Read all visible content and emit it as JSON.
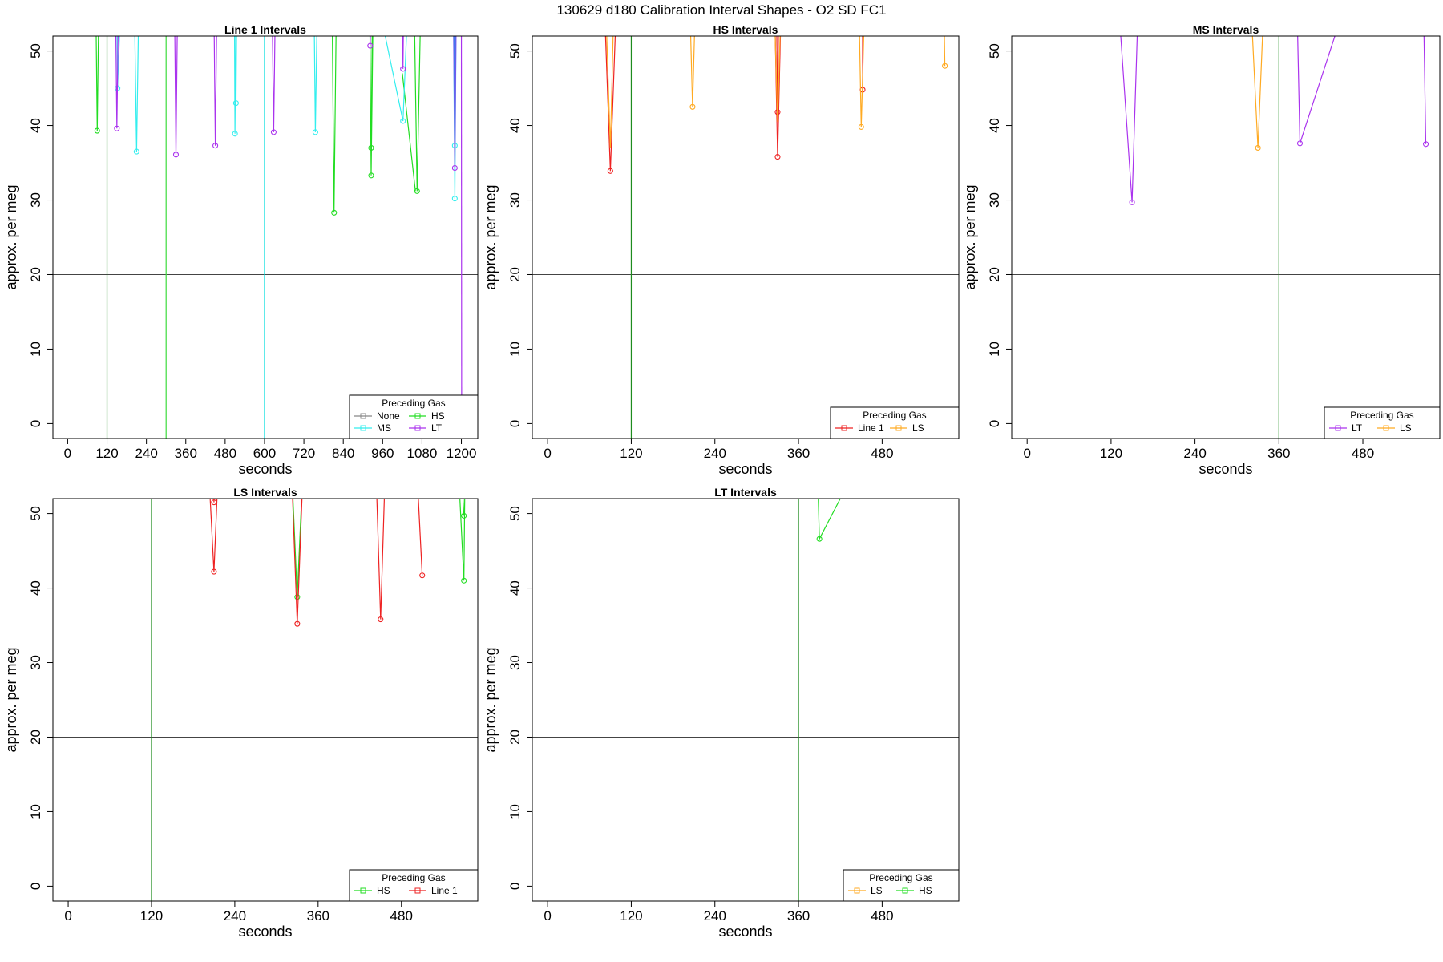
{
  "figure": {
    "title": "130629   d180   Calibration Interval Shapes - O2 SD FC1"
  },
  "chart_data": [
    {
      "type": "line",
      "title": "Line 1 Intervals",
      "xlabel": "seconds",
      "ylabel": "approx. per meg",
      "xlim": [
        -45,
        1250
      ],
      "ylim": [
        -2,
        52
      ],
      "xticks": [
        0,
        120,
        240,
        360,
        480,
        600,
        720,
        840,
        960,
        1080,
        1200
      ],
      "yticks": [
        0,
        10,
        20,
        30,
        40,
        50
      ],
      "hline": 20,
      "vlines": [
        {
          "x": 120,
          "color": "#1e8c1e"
        },
        {
          "x": 300,
          "color": "#3ddc3d"
        },
        {
          "x": 600,
          "color": "#00dddd"
        }
      ],
      "legend": {
        "title": "Preceding Gas",
        "position": "bottom-right",
        "columns": 2,
        "entries": [
          "None",
          "HS",
          "MS",
          "LT"
        ]
      },
      "series": [
        {
          "name": "HS",
          "color": "#22dd22",
          "segments": [
            [
              [
                85,
                60
              ],
              [
                90,
                39.3
              ],
              [
                96,
                60
              ]
            ],
            [
              [
                118,
                60
              ],
              [
                120,
                55
              ],
              [
                122,
                60
              ]
            ],
            [
              [
                805,
                60
              ],
              [
                812,
                28.3
              ],
              [
                820,
                60
              ]
            ],
            [
              [
                920,
                60
              ],
              [
                925,
                33.3
              ],
              [
                932,
                60
              ]
            ],
            [
              [
                925,
                37
              ],
              [
                930,
                60
              ]
            ],
            [
              [
                1055,
                60
              ],
              [
                1065,
                31.2
              ],
              [
                1078,
                60
              ]
            ],
            [
              [
                1020,
                47
              ],
              [
                1060,
                31.2
              ]
            ]
          ],
          "points": [
            [
              90,
              39.3
            ],
            [
              812,
              28.3
            ],
            [
              925,
              33.3
            ],
            [
              925,
              37
            ],
            [
              1065,
              31.2
            ]
          ]
        },
        {
          "name": "MS",
          "color": "#33eeee",
          "segments": [
            [
              [
                150,
                60
              ],
              [
                152,
                45
              ],
              [
                165,
                60
              ]
            ],
            [
              [
                202,
                60
              ],
              [
                210,
                36.5
              ],
              [
                218,
                60
              ]
            ],
            [
              [
                508,
                60
              ],
              [
                510,
                38.9
              ],
              [
                514,
                60
              ]
            ],
            [
              [
                512,
                60
              ],
              [
                513,
                43
              ],
              [
                516,
                60
              ]
            ],
            [
              [
                762,
                60
              ],
              [
                755,
                39.1
              ],
              [
                750,
                60
              ]
            ],
            [
              [
                930,
                60
              ],
              [
                1022,
                40.6
              ],
              [
                1040,
                60
              ]
            ],
            [
              [
                1175,
                60
              ],
              [
                1180,
                30.2
              ],
              [
                1185,
                60
              ]
            ],
            [
              [
                1179,
                60
              ],
              [
                1180,
                37.3
              ],
              [
                1182,
                60
              ]
            ]
          ],
          "points": [
            [
              152,
              45
            ],
            [
              210,
              36.5
            ],
            [
              510,
              38.9
            ],
            [
              513,
              43
            ],
            [
              755,
              39.1
            ],
            [
              1022,
              40.6
            ],
            [
              1180,
              30.2
            ],
            [
              1180,
              37.3
            ]
          ]
        },
        {
          "name": "LT",
          "color": "#aa33ee",
          "segments": [
            [
              [
                145,
                60
              ],
              [
                150,
                39.6
              ],
              [
                156,
                60
              ]
            ],
            [
              [
                325,
                60
              ],
              [
                330,
                36.1
              ],
              [
                336,
                60
              ]
            ],
            [
              [
                445,
                60
              ],
              [
                450,
                37.3
              ],
              [
                456,
                60
              ]
            ],
            [
              [
                622,
                60
              ],
              [
                628,
                39.1
              ],
              [
                634,
                60
              ]
            ],
            [
              [
                918,
                60
              ],
              [
                922,
                50.7
              ],
              [
                926,
                60
              ]
            ],
            [
              [
                1020,
                60
              ],
              [
                1022,
                47.6
              ],
              [
                1025,
                60
              ]
            ],
            [
              [
                1175,
                60
              ],
              [
                1180,
                34.3
              ],
              [
                1185,
                60
              ]
            ],
            [
              [
                1200,
                60
              ],
              [
                1201,
                -2
              ]
            ]
          ],
          "points": [
            [
              150,
              39.6
            ],
            [
              330,
              36.1
            ],
            [
              450,
              37.3
            ],
            [
              628,
              39.1
            ],
            [
              922,
              50.7
            ],
            [
              1022,
              47.6
            ],
            [
              1180,
              34.3
            ]
          ]
        },
        {
          "name": "",
          "color": "#4477ee",
          "segments": [
            [
              [
                1176,
                60
              ],
              [
                1180,
                38
              ],
              [
                1183,
                60
              ]
            ]
          ],
          "points": []
        }
      ]
    },
    {
      "type": "line",
      "title": "HS Intervals",
      "xlabel": "seconds",
      "ylabel": "approx. per meg",
      "xlim": [
        -22,
        590
      ],
      "ylim": [
        -2,
        52
      ],
      "xticks": [
        0,
        120,
        240,
        360,
        480
      ],
      "yticks": [
        0,
        10,
        20,
        30,
        40,
        50
      ],
      "hline": 20,
      "vlines": [
        {
          "x": 120,
          "color": "#1e8c1e"
        }
      ],
      "legend": {
        "title": "Preceding Gas",
        "position": "bottom-right",
        "columns": 2,
        "entries": [
          "Line 1",
          "LS"
        ]
      },
      "series": [
        {
          "name": "Line 1",
          "color": "#ee2222",
          "segments": [
            [
              [
                80,
                60
              ],
              [
                90,
                33.9
              ],
              [
                100,
                60
              ]
            ],
            [
              [
                325,
                60
              ],
              [
                330,
                35.8
              ],
              [
                336,
                60
              ]
            ],
            [
              [
                328,
                60
              ],
              [
                330,
                41.8
              ],
              [
                332,
                60
              ]
            ],
            [
              [
                452,
                60
              ],
              [
                452,
                44.8
              ],
              [
                453,
                60
              ]
            ]
          ],
          "points": [
            [
              90,
              33.9
            ],
            [
              330,
              35.8
            ],
            [
              330,
              41.8
            ],
            [
              452,
              44.8
            ]
          ]
        },
        {
          "name": "LS",
          "color": "#ffaa22",
          "segments": [
            [
              [
                82,
                60
              ],
              [
                90,
                37
              ],
              [
                96,
                60
              ]
            ],
            [
              [
                203,
                60
              ],
              [
                208,
                42.5
              ],
              [
                213,
                60
              ]
            ],
            [
              [
                324,
                60
              ],
              [
                330,
                40.5
              ],
              [
                336,
                60
              ]
            ],
            [
              [
                446,
                60
              ],
              [
                450,
                39.8
              ],
              [
                456,
                60
              ]
            ],
            [
              [
                568,
                60
              ],
              [
                570,
                48
              ]
            ]
          ],
          "points": [
            [
              208,
              42.5
            ],
            [
              450,
              39.8
            ],
            [
              570,
              48
            ]
          ]
        }
      ]
    },
    {
      "type": "line",
      "title": "MS Intervals",
      "xlabel": "seconds",
      "ylabel": "approx. per meg",
      "xlim": [
        -22,
        590
      ],
      "ylim": [
        -2,
        52
      ],
      "xticks": [
        0,
        120,
        240,
        360,
        480
      ],
      "yticks": [
        0,
        10,
        20,
        30,
        40,
        50
      ],
      "hline": 20,
      "vlines": [
        {
          "x": 360,
          "color": "#1e8c1e"
        }
      ],
      "legend": {
        "title": "Preceding Gas",
        "position": "bottom-right",
        "columns": 2,
        "entries": [
          "LT",
          "LS"
        ]
      },
      "series": [
        {
          "name": "LT",
          "color": "#aa33ee",
          "segments": [
            [
              [
                128,
                60
              ],
              [
                150,
                29.7
              ],
              [
                160,
                60
              ]
            ],
            [
              [
                385,
                60
              ],
              [
                390,
                37.6
              ],
              [
                440,
                52
              ],
              [
                450,
                60
              ]
            ],
            [
              [
                566,
                60
              ],
              [
                570,
                37.5
              ]
            ]
          ],
          "points": [
            [
              150,
              29.7
            ],
            [
              390,
              37.6
            ],
            [
              570,
              37.5
            ]
          ]
        },
        {
          "name": "LS",
          "color": "#ffaa22",
          "segments": [
            [
              [
                318,
                60
              ],
              [
                330,
                37
              ],
              [
                340,
                60
              ]
            ]
          ],
          "points": [
            [
              330,
              37
            ]
          ]
        }
      ]
    },
    {
      "type": "line",
      "title": "LS Intervals",
      "xlabel": "seconds",
      "ylabel": "approx. per meg",
      "xlim": [
        -22,
        590
      ],
      "ylim": [
        -2,
        52
      ],
      "xticks": [
        0,
        120,
        240,
        360,
        480
      ],
      "yticks": [
        0,
        10,
        20,
        30,
        40,
        50
      ],
      "hline": 20,
      "vlines": [
        {
          "x": 120,
          "color": "#1e8c1e"
        }
      ],
      "legend": {
        "title": "Preceding Gas",
        "position": "bottom-right",
        "columns": 2,
        "entries": [
          "HS",
          "Line 1"
        ]
      },
      "series": [
        {
          "name": "HS",
          "color": "#22dd22",
          "segments": [
            [
              [
                320,
                60
              ],
              [
                330,
                38.8
              ],
              [
                340,
                60
              ]
            ],
            [
              [
                560,
                60
              ],
              [
                570,
                41
              ],
              [
                572,
                60
              ]
            ],
            [
              [
                564,
                60
              ],
              [
                570,
                49.7
              ]
            ]
          ],
          "points": [
            [
              330,
              38.8
            ],
            [
              570,
              41
            ],
            [
              570,
              49.7
            ]
          ]
        },
        {
          "name": "Line 1",
          "color": "#ee2222",
          "segments": [
            [
              [
                200,
                60
              ],
              [
                210,
                42.2
              ],
              [
                218,
                60
              ]
            ],
            [
              [
                208,
                60
              ],
              [
                210,
                51.5
              ],
              [
                214,
                60
              ]
            ],
            [
              [
                320,
                60
              ],
              [
                330,
                35.2
              ],
              [
                340,
                60
              ]
            ],
            [
              [
                442,
                60
              ],
              [
                450,
                35.8
              ],
              [
                458,
                60
              ]
            ],
            [
              [
                500,
                60
              ],
              [
                510,
                41.7
              ]
            ]
          ],
          "points": [
            [
              210,
              42.2
            ],
            [
              210,
              51.5
            ],
            [
              330,
              35.2
            ],
            [
              450,
              35.8
            ],
            [
              510,
              41.7
            ]
          ]
        }
      ]
    },
    {
      "type": "line",
      "title": "LT Intervals",
      "xlabel": "seconds",
      "ylabel": "approx. per meg",
      "xlim": [
        -22,
        590
      ],
      "ylim": [
        -2,
        52
      ],
      "xticks": [
        0,
        120,
        240,
        360,
        480
      ],
      "yticks": [
        0,
        10,
        20,
        30,
        40,
        50
      ],
      "hline": 20,
      "vlines": [
        {
          "x": 360,
          "color": "#1e8c1e"
        }
      ],
      "legend": {
        "title": "Preceding Gas",
        "position": "bottom-right",
        "columns": 2,
        "entries": [
          "LS",
          "HS"
        ]
      },
      "series": [
        {
          "name": "HS",
          "color": "#22dd22",
          "segments": [
            [
              [
                386,
                60
              ],
              [
                390,
                46.6
              ],
              [
                420,
                52
              ],
              [
                425,
                60
              ]
            ]
          ],
          "points": [
            [
              390,
              46.6
            ]
          ]
        },
        {
          "name": "LS",
          "color": "#ffaa22",
          "segments": [],
          "points": []
        }
      ]
    }
  ]
}
